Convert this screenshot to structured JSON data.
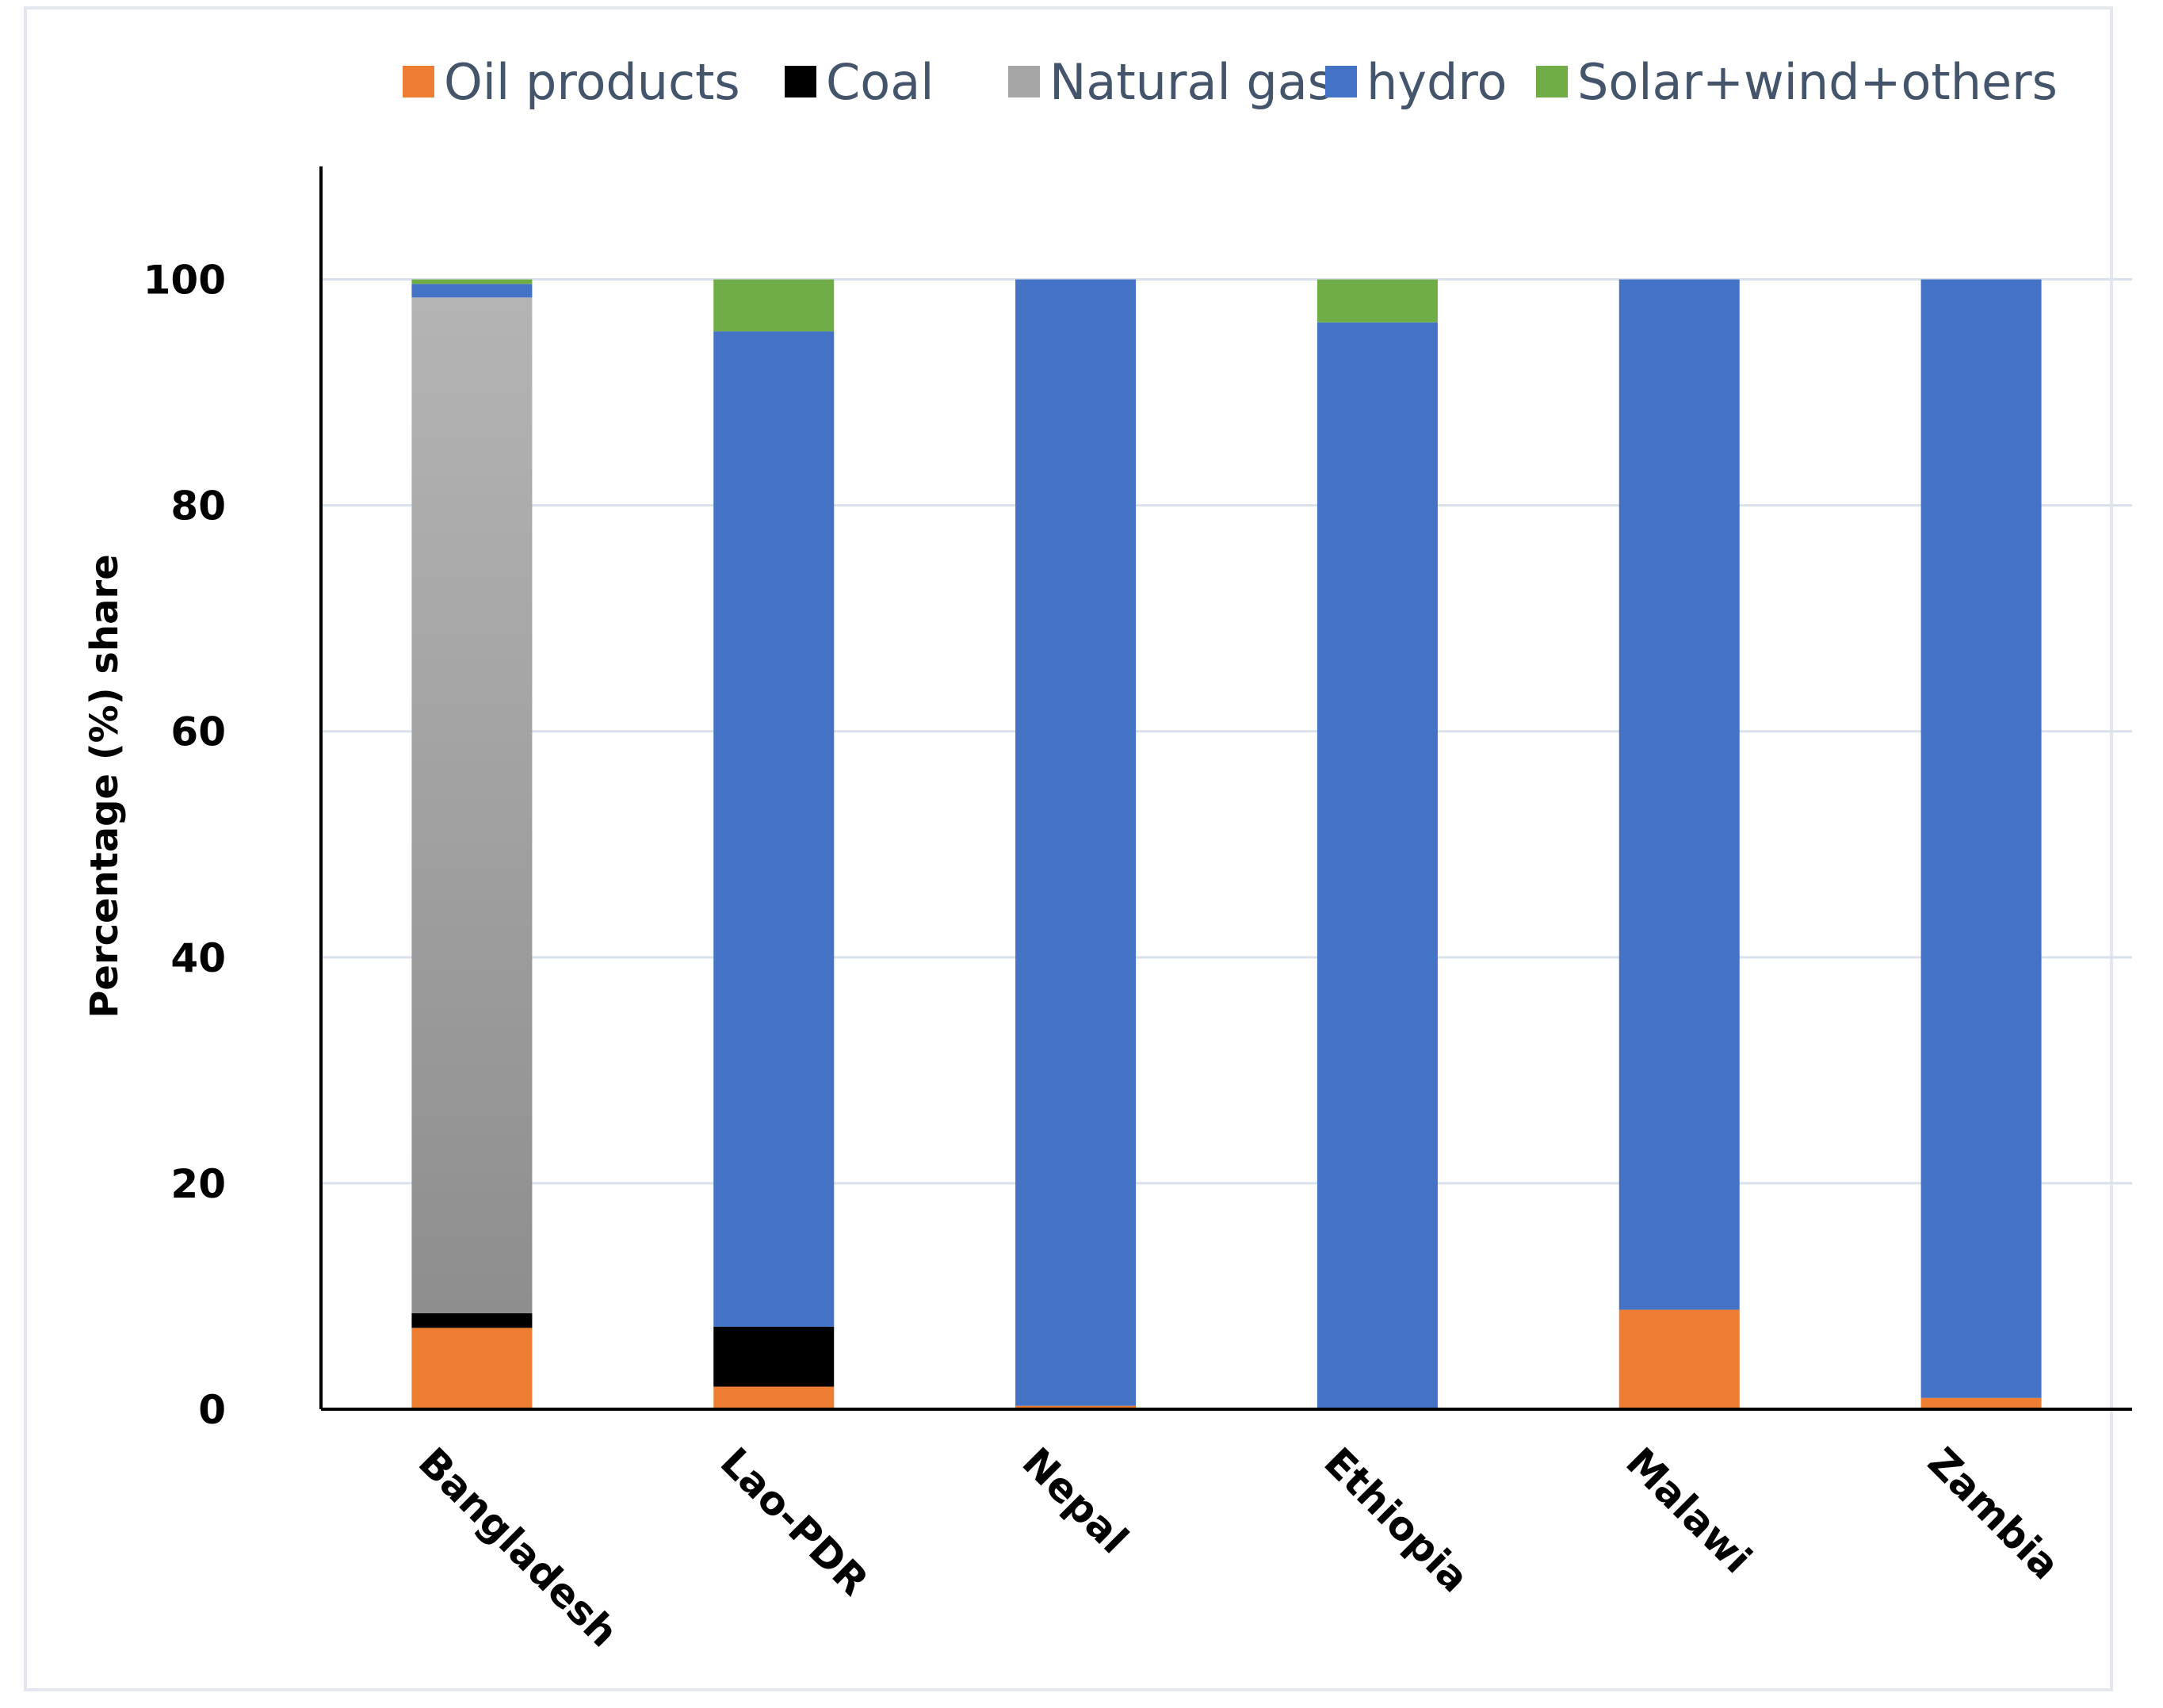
{
  "chart_data": {
    "type": "bar",
    "stacked": true,
    "title": "",
    "xlabel": "",
    "ylabel": "Percentage (%) share",
    "ylim": [
      0,
      110
    ],
    "yticks": [
      "0",
      "20",
      "40",
      "60",
      "80",
      "100"
    ],
    "grid": true,
    "legend_position": "top",
    "categories": [
      "Bangladesh",
      "Lao-PDR",
      "Nepal",
      "Ethiopia",
      "Malawi",
      "Zambia"
    ],
    "series": [
      {
        "name": "Oil products",
        "color": "#ed7d31",
        "values": [
          7.2,
          2.0,
          0.3,
          0.0,
          8.8,
          1.0
        ]
      },
      {
        "name": "Coal",
        "color": "#000000",
        "values": [
          1.3,
          5.3,
          0.0,
          0.0,
          0.0,
          0.0
        ]
      },
      {
        "name": "Natural gas",
        "color": "#a5a5a5",
        "values": [
          89.9,
          0.0,
          0.0,
          0.0,
          0.0,
          0.0
        ]
      },
      {
        "name": "hydro",
        "color": "#4472c4",
        "values": [
          1.2,
          88.1,
          99.7,
          96.2,
          91.2,
          99.0
        ]
      },
      {
        "name": "Solar+wind+others",
        "color": "#70ad47",
        "values": [
          0.4,
          4.6,
          0.0,
          3.8,
          0.0,
          0.0
        ]
      }
    ]
  }
}
